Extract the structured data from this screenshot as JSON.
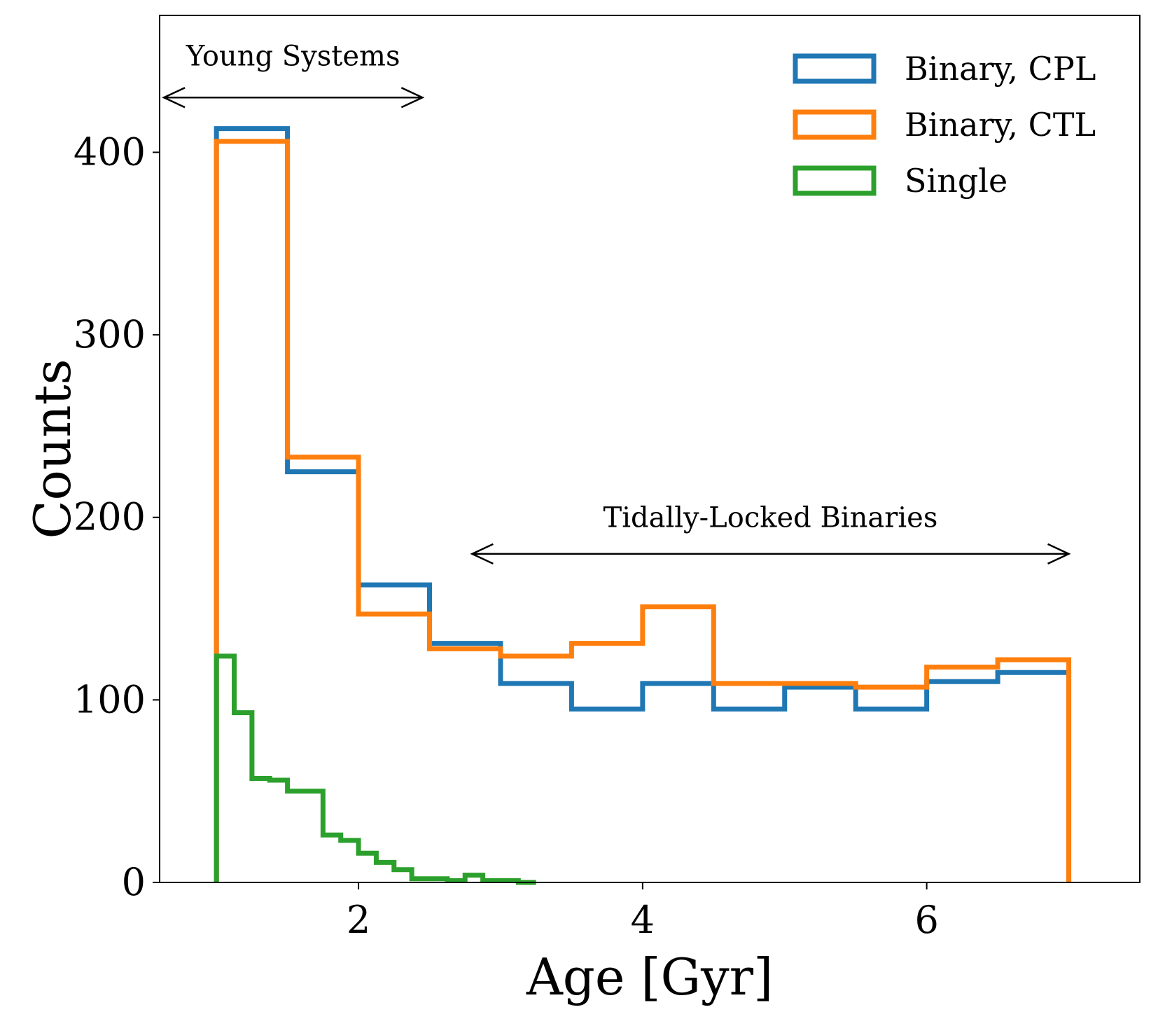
{
  "chart_data": {
    "type": "histogram",
    "xlabel": "Age [Gyr]",
    "ylabel": "Counts",
    "xlim": [
      0.6,
      7.5
    ],
    "ylim": [
      0,
      475
    ],
    "xticks": [
      2,
      4,
      6
    ],
    "yticks": [
      0,
      100,
      200,
      300,
      400
    ],
    "xtick_labels": [
      "2",
      "4",
      "6"
    ],
    "ytick_labels": [
      "0",
      "100",
      "200",
      "300",
      "400"
    ],
    "legend_position": "top-right",
    "series": [
      {
        "name": "Binary, CPL",
        "color": "#1f77b4",
        "edges": [
          1.0,
          1.5,
          2.0,
          2.5,
          3.0,
          3.5,
          4.0,
          4.5,
          5.0,
          5.5,
          6.0,
          6.5,
          7.0
        ],
        "values": [
          413,
          225,
          163,
          131,
          109,
          95,
          109,
          95,
          107,
          95,
          110,
          115
        ]
      },
      {
        "name": "Binary, CTL",
        "color": "#ff7f0e",
        "edges": [
          1.0,
          1.5,
          2.0,
          2.5,
          3.0,
          3.5,
          4.0,
          4.5,
          5.0,
          5.5,
          6.0,
          6.5,
          7.0
        ],
        "values": [
          406,
          233,
          147,
          128,
          124,
          131,
          151,
          109,
          109,
          107,
          118,
          122
        ]
      },
      {
        "name": "Single",
        "color": "#2ca02c",
        "edges": [
          1.0,
          1.125,
          1.25,
          1.375,
          1.5,
          1.625,
          1.75,
          1.875,
          2.0,
          2.125,
          2.25,
          2.375,
          2.5,
          2.625,
          2.75,
          2.875,
          3.0,
          3.125,
          3.25
        ],
        "values": [
          124,
          93,
          57,
          56,
          50,
          50,
          26,
          23,
          16,
          11,
          7,
          2,
          2,
          1,
          4,
          1,
          1,
          0
        ]
      }
    ],
    "annotations": [
      {
        "text": "Young Systems",
        "x_start": 0.63,
        "x_end": 2.45,
        "y_text": 453,
        "y_arrow": 430
      },
      {
        "text": "Tidally-Locked Binaries",
        "x_start": 2.8,
        "x_end": 7.0,
        "y_text": 200,
        "y_arrow": 180
      }
    ]
  }
}
